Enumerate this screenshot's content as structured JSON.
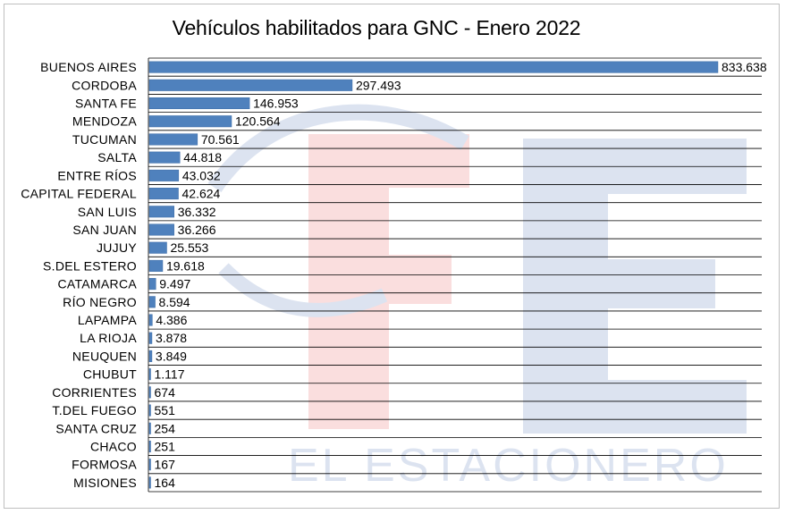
{
  "chart_data": {
    "type": "bar",
    "orientation": "horizontal",
    "title": "Vehículos habilitados para GNC - Enero 2022",
    "xlabel": "",
    "ylabel": "",
    "grid": true,
    "legend": "none",
    "bar_color": "#4f81bd",
    "watermark_text": "EL ESTACIONERO",
    "categories": [
      "BUENOS AIRES",
      "CORDOBA",
      "SANTA FE",
      "MENDOZA",
      "TUCUMAN",
      "SALTA",
      "ENTRE RÍOS",
      "CAPITAL FEDERAL",
      "SAN LUIS",
      "SAN JUAN",
      "JUJUY",
      "S.DEL ESTERO",
      "CATAMARCA",
      "RÍO NEGRO",
      "LAPAMPA",
      "LA RIOJA",
      "NEUQUEN",
      "CHUBUT",
      "CORRIENTES",
      "T.DEL FUEGO",
      "SANTA CRUZ",
      "CHACO",
      "FORMOSA",
      "MISIONES"
    ],
    "values": [
      833638,
      297493,
      146953,
      120564,
      70561,
      44818,
      43032,
      42624,
      36332,
      36266,
      25553,
      19618,
      9497,
      8594,
      4386,
      3878,
      3849,
      1117,
      674,
      551,
      254,
      251,
      167,
      164
    ],
    "value_labels": [
      "833.638",
      "297.493",
      "146.953",
      "120.564",
      "70.561",
      "44.818",
      "43.032",
      "42.624",
      "36.332",
      "36.266",
      "25.553",
      "19.618",
      "9.497",
      "8.594",
      "4.386",
      "3.878",
      "3.849",
      "1.117",
      "674",
      "551",
      "254",
      "251",
      "167",
      "164"
    ],
    "xlim": [
      0,
      833638
    ]
  }
}
